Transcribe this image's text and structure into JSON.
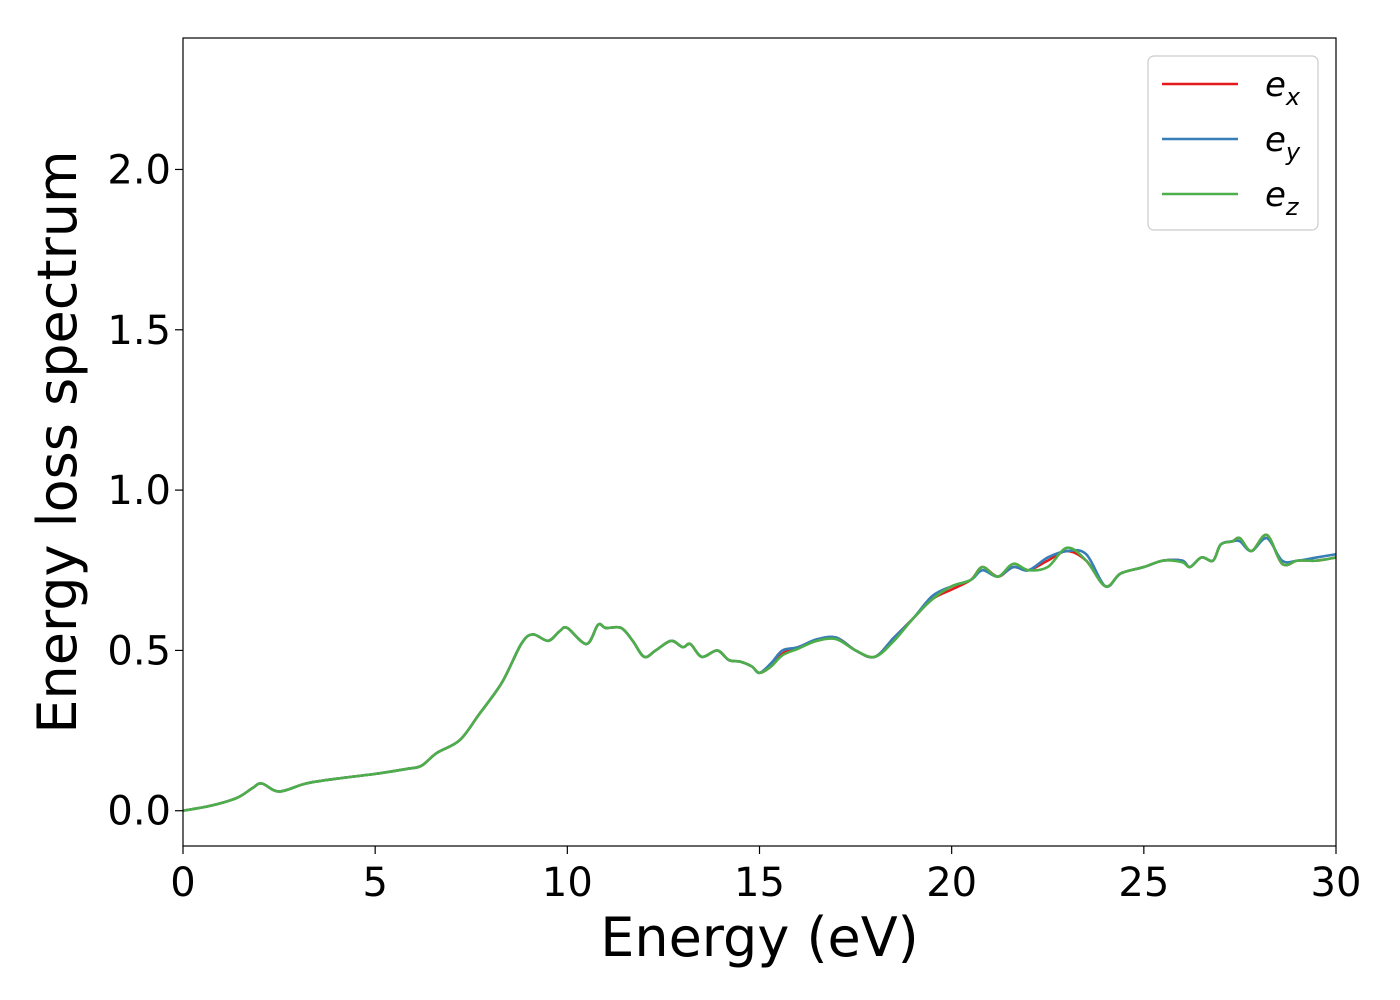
{
  "chart_data": {
    "type": "line",
    "xlabel": "Energy (eV)",
    "ylabel": "Energy loss spectrum",
    "xlim": [
      0,
      30
    ],
    "ylim": [
      -0.11,
      2.41
    ],
    "xticks": [
      0,
      5,
      10,
      15,
      20,
      25,
      30
    ],
    "yticks": [
      0.0,
      0.5,
      1.0,
      1.5,
      2.0
    ],
    "xtick_labels": [
      "0",
      "5",
      "10",
      "15",
      "20",
      "25",
      "30"
    ],
    "ytick_labels": [
      "0.0",
      "0.5",
      "1.0",
      "1.5",
      "2.0"
    ],
    "grid": false,
    "legend_position": "top-right",
    "series": [
      {
        "name": "e_x",
        "legend_base": "e",
        "legend_sub": "x",
        "color": "#e41a1c",
        "x": [
          0,
          0.7,
          1.4,
          1.8,
          2.05,
          2.5,
          3.2,
          4.0,
          5.0,
          5.8,
          6.2,
          6.6,
          7.2,
          7.7,
          8.3,
          8.8,
          9.1,
          9.5,
          9.8,
          10.0,
          10.5,
          10.8,
          11.0,
          11.4,
          11.7,
          12.0,
          12.3,
          12.7,
          13.0,
          13.2,
          13.5,
          13.9,
          14.2,
          14.5,
          14.8,
          15.0,
          15.3,
          15.6,
          16.0,
          16.5,
          17.0,
          17.5,
          18.0,
          18.5,
          19.0,
          19.5,
          20.0,
          20.5,
          20.8,
          21.2,
          21.6,
          22.0,
          22.5,
          23.0,
          23.5,
          24.0,
          24.4,
          25.0,
          25.5,
          26.0,
          26.2,
          26.5,
          26.8,
          27.0,
          27.3,
          27.5,
          27.8,
          28.2,
          28.6,
          29.0,
          29.5,
          30.0
        ],
        "values": [
          0.0,
          0.015,
          0.04,
          0.07,
          0.085,
          0.06,
          0.085,
          0.1,
          0.115,
          0.13,
          0.14,
          0.18,
          0.22,
          0.3,
          0.4,
          0.52,
          0.55,
          0.53,
          0.56,
          0.57,
          0.52,
          0.58,
          0.57,
          0.57,
          0.53,
          0.48,
          0.5,
          0.53,
          0.51,
          0.52,
          0.48,
          0.5,
          0.47,
          0.465,
          0.45,
          0.43,
          0.45,
          0.49,
          0.51,
          0.53,
          0.54,
          0.5,
          0.48,
          0.54,
          0.6,
          0.66,
          0.69,
          0.72,
          0.76,
          0.73,
          0.76,
          0.75,
          0.78,
          0.81,
          0.78,
          0.7,
          0.74,
          0.76,
          0.78,
          0.78,
          0.76,
          0.79,
          0.78,
          0.83,
          0.84,
          0.85,
          0.81,
          0.86,
          0.77,
          0.78,
          0.78,
          0.79
        ]
      },
      {
        "name": "e_y",
        "legend_base": "e",
        "legend_sub": "y",
        "color": "#377eb8",
        "x": [
          0,
          0.7,
          1.4,
          1.8,
          2.05,
          2.5,
          3.2,
          4.0,
          5.0,
          5.8,
          6.2,
          6.6,
          7.2,
          7.7,
          8.3,
          8.8,
          9.1,
          9.5,
          9.8,
          10.0,
          10.5,
          10.8,
          11.0,
          11.4,
          11.7,
          12.0,
          12.3,
          12.7,
          13.0,
          13.2,
          13.5,
          13.9,
          14.2,
          14.5,
          14.8,
          15.0,
          15.3,
          15.6,
          16.0,
          16.5,
          17.0,
          17.5,
          18.0,
          18.5,
          19.0,
          19.5,
          20.0,
          20.5,
          20.8,
          21.2,
          21.6,
          22.0,
          22.5,
          23.0,
          23.5,
          24.0,
          24.4,
          25.0,
          25.5,
          26.0,
          26.2,
          26.5,
          26.8,
          27.0,
          27.3,
          27.5,
          27.8,
          28.2,
          28.6,
          29.0,
          29.5,
          30.0
        ],
        "values": [
          0.0,
          0.015,
          0.04,
          0.07,
          0.085,
          0.06,
          0.085,
          0.1,
          0.115,
          0.13,
          0.14,
          0.18,
          0.22,
          0.3,
          0.4,
          0.52,
          0.55,
          0.53,
          0.56,
          0.57,
          0.52,
          0.58,
          0.57,
          0.57,
          0.53,
          0.48,
          0.5,
          0.53,
          0.51,
          0.52,
          0.48,
          0.5,
          0.47,
          0.465,
          0.45,
          0.43,
          0.46,
          0.5,
          0.51,
          0.535,
          0.54,
          0.5,
          0.48,
          0.54,
          0.6,
          0.67,
          0.7,
          0.72,
          0.75,
          0.73,
          0.76,
          0.75,
          0.79,
          0.81,
          0.8,
          0.7,
          0.74,
          0.76,
          0.78,
          0.78,
          0.76,
          0.79,
          0.78,
          0.83,
          0.84,
          0.84,
          0.81,
          0.85,
          0.78,
          0.78,
          0.79,
          0.8
        ]
      },
      {
        "name": "e_z",
        "legend_base": "e",
        "legend_sub": "z",
        "color": "#4daf4a",
        "x": [
          0,
          0.7,
          1.4,
          1.8,
          2.05,
          2.5,
          3.2,
          4.0,
          5.0,
          5.8,
          6.2,
          6.6,
          7.2,
          7.7,
          8.3,
          8.8,
          9.1,
          9.5,
          9.8,
          10.0,
          10.5,
          10.8,
          11.0,
          11.4,
          11.7,
          12.0,
          12.3,
          12.7,
          13.0,
          13.2,
          13.5,
          13.9,
          14.2,
          14.5,
          14.8,
          15.0,
          15.3,
          15.6,
          16.0,
          16.5,
          17.0,
          17.5,
          18.0,
          18.5,
          19.0,
          19.5,
          20.0,
          20.5,
          20.8,
          21.2,
          21.6,
          22.0,
          22.5,
          23.0,
          23.5,
          24.0,
          24.4,
          25.0,
          25.5,
          26.0,
          26.2,
          26.5,
          26.8,
          27.0,
          27.3,
          27.5,
          27.8,
          28.2,
          28.6,
          29.0,
          29.5,
          30.0
        ],
        "values": [
          0.0,
          0.015,
          0.04,
          0.07,
          0.085,
          0.06,
          0.085,
          0.1,
          0.115,
          0.13,
          0.14,
          0.18,
          0.22,
          0.3,
          0.4,
          0.52,
          0.55,
          0.53,
          0.56,
          0.57,
          0.52,
          0.58,
          0.57,
          0.57,
          0.53,
          0.48,
          0.5,
          0.53,
          0.51,
          0.52,
          0.48,
          0.5,
          0.47,
          0.465,
          0.45,
          0.43,
          0.45,
          0.485,
          0.505,
          0.53,
          0.535,
          0.5,
          0.48,
          0.53,
          0.6,
          0.66,
          0.7,
          0.72,
          0.76,
          0.73,
          0.77,
          0.75,
          0.76,
          0.82,
          0.78,
          0.7,
          0.74,
          0.76,
          0.78,
          0.775,
          0.76,
          0.79,
          0.78,
          0.83,
          0.84,
          0.85,
          0.81,
          0.86,
          0.77,
          0.78,
          0.78,
          0.79
        ]
      }
    ]
  }
}
